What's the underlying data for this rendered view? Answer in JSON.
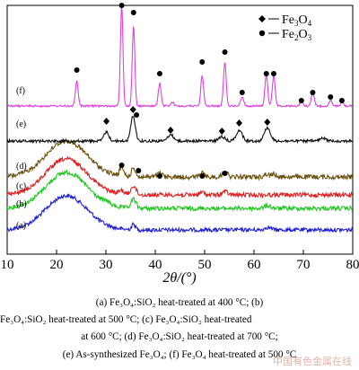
{
  "chart_data": {
    "type": "line",
    "xlabel": "2θ/(°)",
    "ylabel": "",
    "xlim": [
      10,
      80
    ],
    "xticks": [
      10,
      20,
      30,
      40,
      50,
      60,
      70,
      80
    ],
    "grid": false,
    "legend": {
      "placement": "top-right",
      "entries": [
        {
          "marker": "diamond",
          "label": "Fe3O4"
        },
        {
          "marker": "circle",
          "label": "Fe2O3"
        }
      ]
    },
    "series": [
      {
        "name": "(a)",
        "color": "#1f1fd6",
        "baseline": 256,
        "amorphous_hump": 38,
        "noise": 2.2,
        "peaks": [
          [
            35.6,
            6,
            0.4
          ],
          [
            62.8,
            3,
            0.6
          ]
        ]
      },
      {
        "name": "(b)",
        "color": "#1ec81e",
        "baseline": 232,
        "amorphous_hump": 40,
        "noise": 2.4,
        "peaks": [
          [
            35.6,
            10,
            0.5
          ],
          [
            30.2,
            3,
            0.5
          ],
          [
            62.8,
            3,
            0.6
          ]
        ]
      },
      {
        "name": "(c)",
        "color": "#e02020",
        "baseline": 217,
        "amorphous_hump": 40,
        "noise": 2.4,
        "peaks": [
          [
            35.6,
            10,
            0.5
          ],
          [
            33.2,
            4,
            0.5
          ],
          [
            49.5,
            3,
            0.5
          ],
          [
            54.1,
            4,
            0.5
          ]
        ]
      },
      {
        "name": "(d)",
        "color": "#6b5210",
        "baseline": 197,
        "amorphous_hump": 40,
        "noise": 2.6,
        "peaks": [
          [
            33.2,
            10,
            0.4
          ],
          [
            35.6,
            10,
            0.4
          ],
          [
            40.9,
            4,
            0.5
          ],
          [
            49.5,
            4,
            0.5
          ],
          [
            54.1,
            6,
            0.5
          ],
          [
            62.5,
            3,
            0.5
          ],
          [
            64.0,
            3,
            0.5
          ]
        ]
      },
      {
        "name": "(e)",
        "color": "#111111",
        "baseline": 157,
        "amorphous_hump": 0,
        "noise": 1.5,
        "peaks": [
          [
            30.1,
            10,
            0.5
          ],
          [
            35.5,
            28,
            0.45
          ],
          [
            43.1,
            7,
            0.6
          ],
          [
            53.5,
            5,
            0.6
          ],
          [
            57.0,
            12,
            0.6
          ],
          [
            62.7,
            15,
            0.6
          ],
          [
            74.0,
            3,
            0.6
          ]
        ]
      },
      {
        "name": "(f)",
        "color": "#e040e0",
        "baseline": 118,
        "amorphous_hump": 0,
        "noise": 1.0,
        "peaks": [
          [
            24.1,
            28,
            0.28
          ],
          [
            33.2,
            112,
            0.26
          ],
          [
            35.6,
            90,
            0.26
          ],
          [
            40.9,
            25,
            0.28
          ],
          [
            43.5,
            4,
            0.3
          ],
          [
            49.5,
            34,
            0.28
          ],
          [
            54.1,
            48,
            0.28
          ],
          [
            57.6,
            10,
            0.3
          ],
          [
            62.5,
            35,
            0.28
          ],
          [
            64.0,
            34,
            0.28
          ],
          [
            69.6,
            5,
            0.3
          ],
          [
            71.9,
            14,
            0.3
          ],
          [
            75.5,
            6,
            0.3
          ],
          [
            77.8,
            4,
            0.3
          ]
        ]
      }
    ],
    "markers": {
      "e": [
        {
          "type": "diamond",
          "x": 30.1
        },
        {
          "type": "diamond",
          "x": 35.5
        },
        {
          "type": "diamond",
          "x": 43.1
        },
        {
          "type": "diamond",
          "x": 53.5
        },
        {
          "type": "diamond",
          "x": 57.0
        },
        {
          "type": "diamond",
          "x": 62.7
        }
      ],
      "f": [
        {
          "type": "circle",
          "x": 24.1
        },
        {
          "type": "circle",
          "x": 33.2
        },
        {
          "type": "circle",
          "x": 35.6
        },
        {
          "type": "circle",
          "x": 40.9
        },
        {
          "type": "circle",
          "x": 49.5
        },
        {
          "type": "circle",
          "x": 54.1
        },
        {
          "type": "circle",
          "x": 57.6
        },
        {
          "type": "circle",
          "x": 62.5
        },
        {
          "type": "circle",
          "x": 64.0
        },
        {
          "type": "circle",
          "x": 69.6
        },
        {
          "type": "circle",
          "x": 71.9
        },
        {
          "type": "circle",
          "x": 75.5
        },
        {
          "type": "circle",
          "x": 77.8
        }
      ],
      "d": [
        {
          "type": "circle",
          "x": 33.2
        },
        {
          "type": "circle",
          "x": 36.6
        },
        {
          "type": "circle",
          "x": 40.9
        },
        {
          "type": "circle",
          "x": 49.5
        },
        {
          "type": "circle",
          "x": 54.1
        }
      ],
      "e_extra": [
        {
          "type": "circle",
          "x": 36.2
        }
      ]
    }
  },
  "caption": {
    "lines": [
      "(a)  Fe₃O₄:SiO₂  heat-treated  at  400  °C;  (b)",
      "Fe₃O₄:SiO₂ heat-treated at 500 °C; (c) Fe₃O₄:SiO₂ heat-treated",
      "at  600  °C;  (d)  Fe₃O₄:SiO₂  heat-treated  at  700  °C;",
      "(e) As-synthesized Fe₃O₄; (f) Fe₃O₄ heat-treated at 500 °C"
    ]
  },
  "watermark": "中国有色金属在线"
}
